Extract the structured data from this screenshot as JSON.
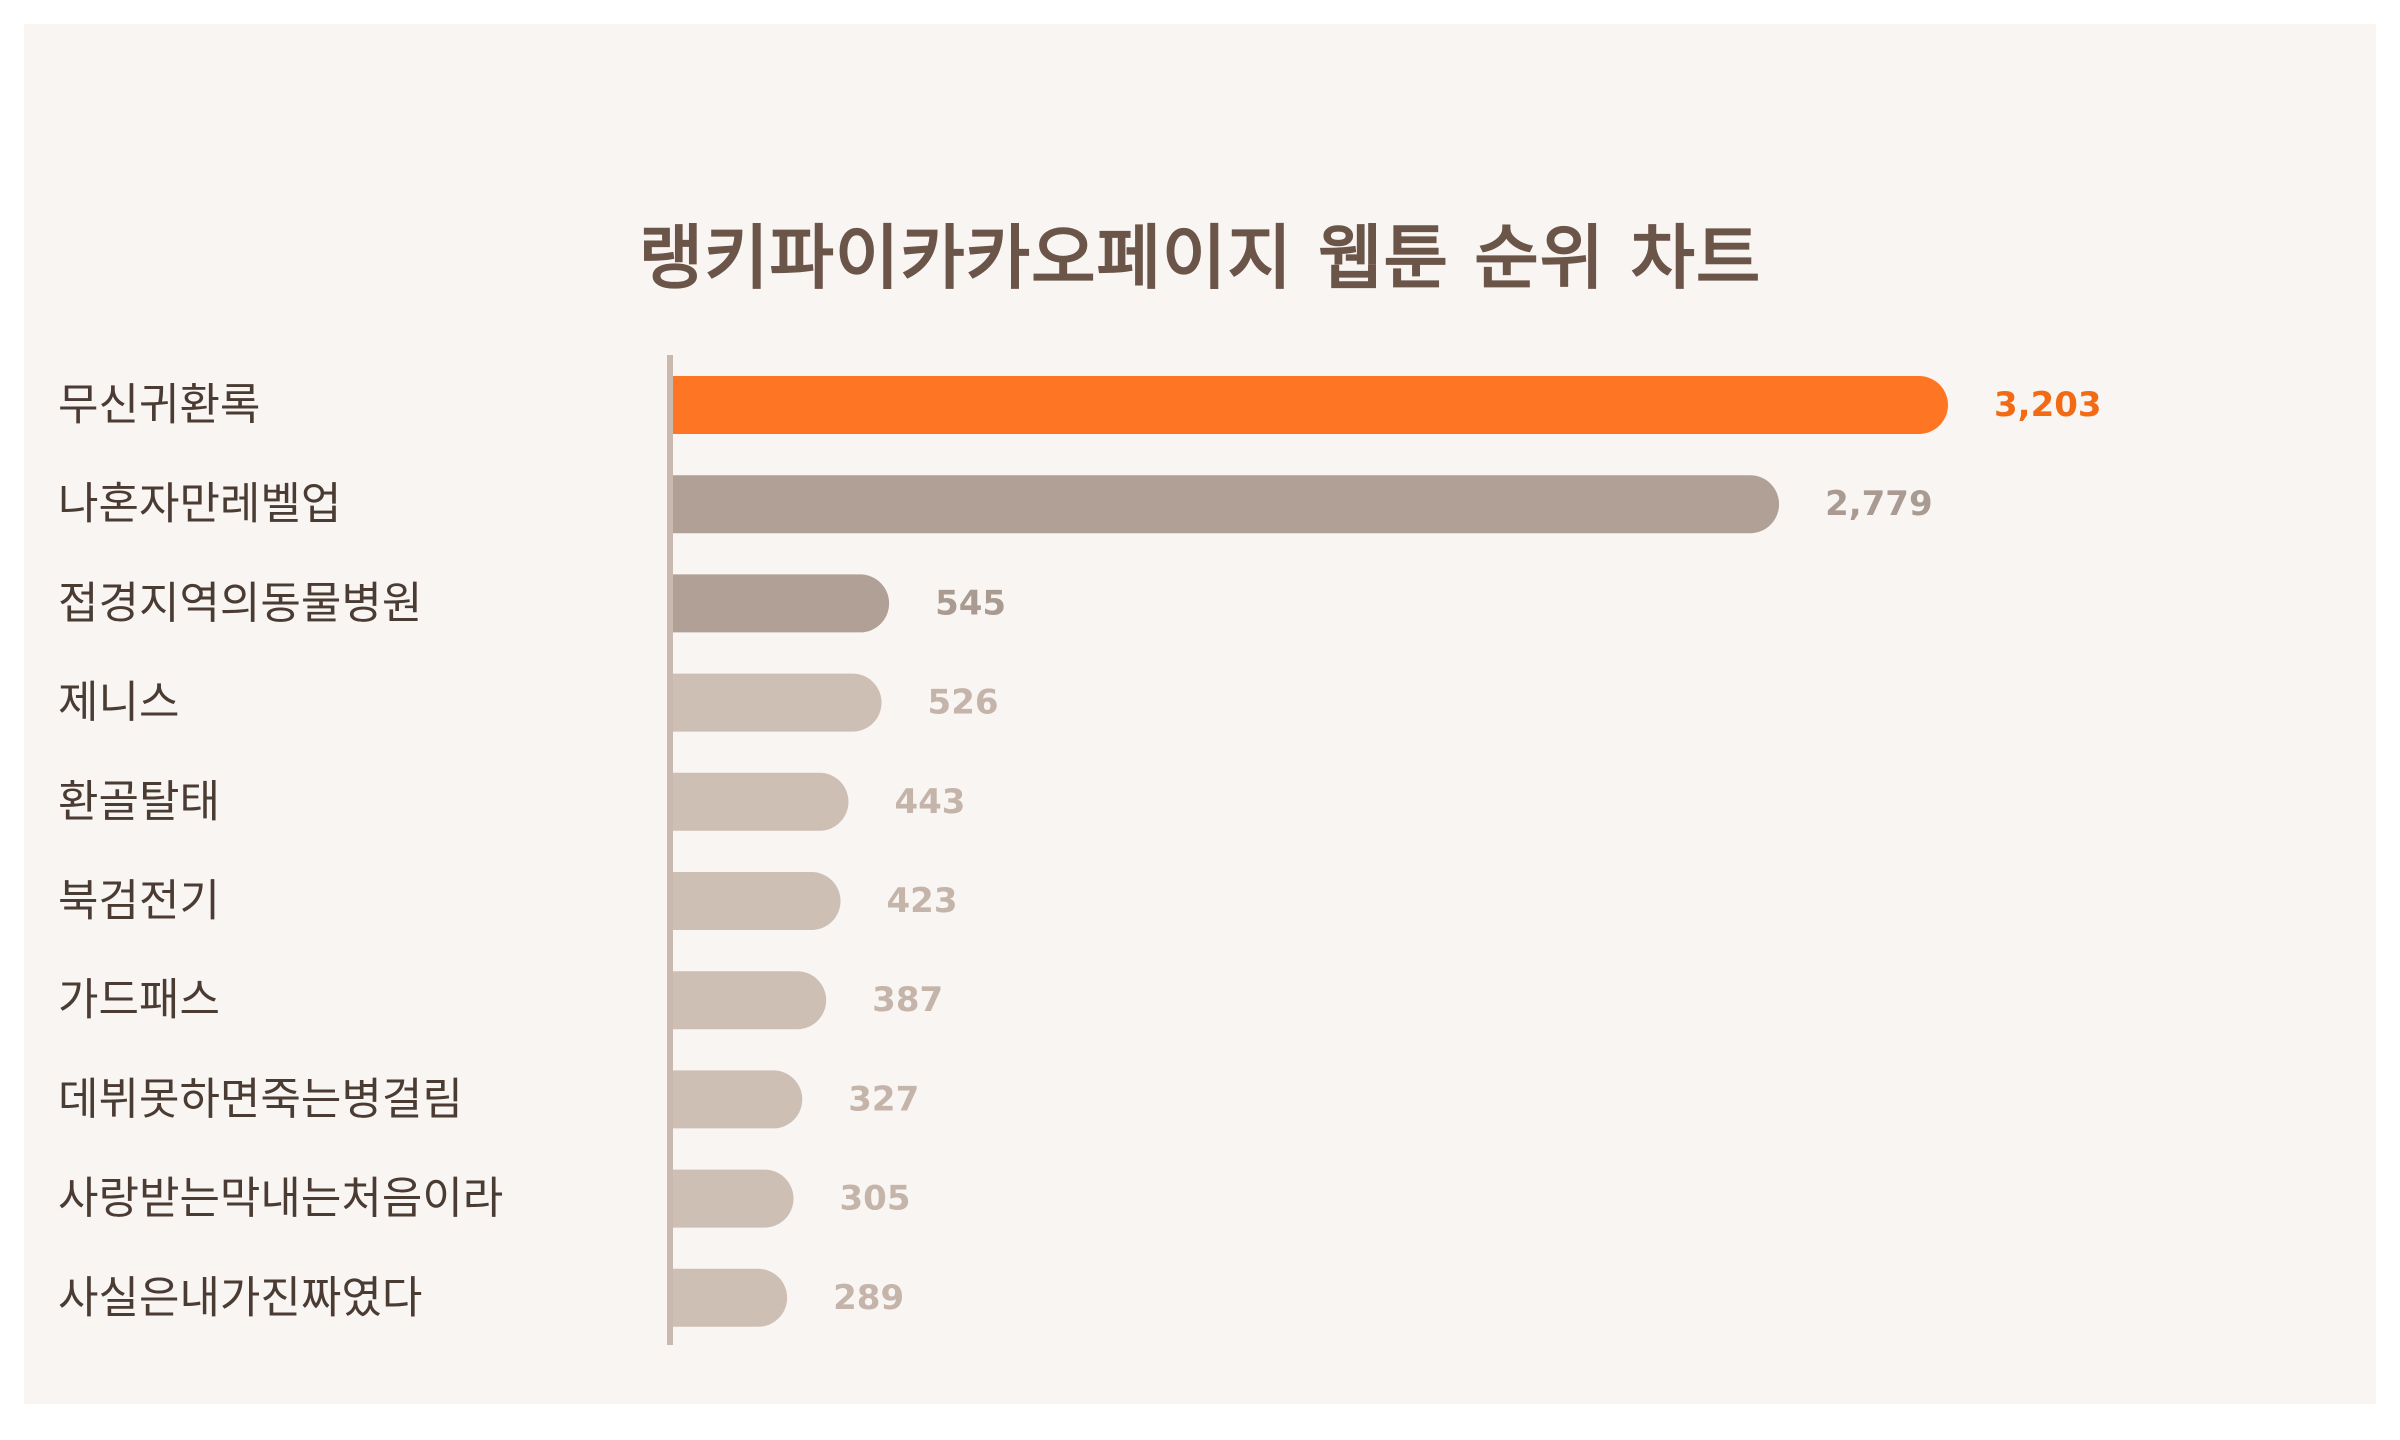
{
  "chart_data": {
    "type": "bar",
    "orientation": "horizontal",
    "title": "랭키파이카카오페이지 웹툰 순위 차트",
    "categories": [
      "무신귀환록",
      "나혼자만레벨업",
      "접경지역의동물병원",
      "제니스",
      "환골탈태",
      "북검전기",
      "가드패스",
      "데뷔못하면죽는병걸림",
      "사랑받는막내는처음이라",
      "사실은내가진짜였다"
    ],
    "values": [
      3203,
      2779,
      545,
      526,
      443,
      423,
      387,
      327,
      305,
      289
    ],
    "value_labels": [
      "3,203",
      "2,779",
      "545",
      "526",
      "443",
      "423",
      "387",
      "327",
      "305",
      "289"
    ],
    "xlim": [
      0,
      3203
    ],
    "grid": false,
    "legend": "none"
  },
  "colors": {
    "background": "#ffffff",
    "panel": "#f9f5f3",
    "title": "#6b5549",
    "category_text": "#4a3b33",
    "axis": "#c9b9ae",
    "bar_colors": [
      "#fe7624",
      "#b1a096",
      "#b1a096",
      "#cebfb5",
      "#cebfb5",
      "#cebfb5",
      "#cebfb5",
      "#cebfb5",
      "#cebfb5",
      "#cebfb5"
    ],
    "value_colors": [
      "#f26a13",
      "#a99b92",
      "#a99b92",
      "#c4b4a9",
      "#c4b4a9",
      "#c4b4a9",
      "#c4b4a9",
      "#c4b4a9",
      "#c4b4a9",
      "#c4b4a9"
    ]
  }
}
